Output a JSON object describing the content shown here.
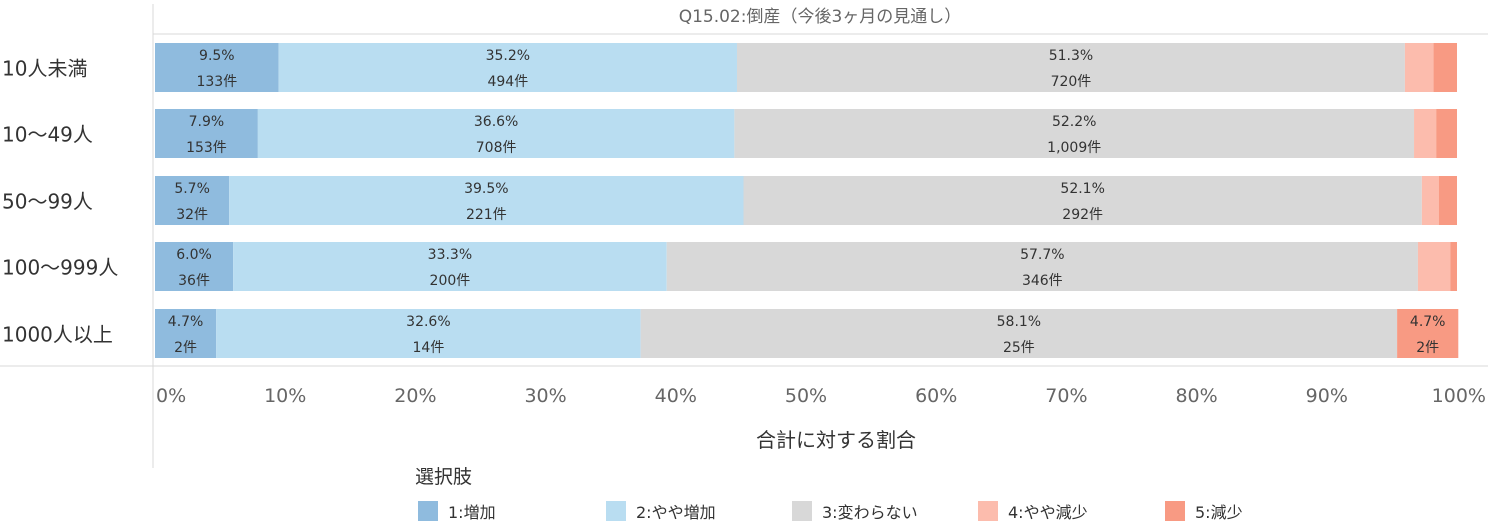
{
  "chart_data": {
    "type": "bar",
    "orientation": "horizontal",
    "stacked": true,
    "title": "Q15.02:倒産（今後3ヶ月の見通し）",
    "xlabel": "合計に対する割合",
    "ylabel": "",
    "xlim": [
      0,
      100
    ],
    "x_ticks": [
      "0%",
      "10%",
      "20%",
      "30%",
      "40%",
      "50%",
      "60%",
      "70%",
      "80%",
      "90%",
      "100%"
    ],
    "categories": [
      "10人未満",
      "10〜49人",
      "50〜99人",
      "100〜999人",
      "1000人以上"
    ],
    "series": [
      {
        "name": "1:増加",
        "color": "#8fbbde",
        "values": [
          9.5,
          7.9,
          5.7,
          6.0,
          4.7
        ],
        "labels": [
          "9.5%",
          "7.9%",
          "5.7%",
          "6.0%",
          "4.7%"
        ],
        "counts": [
          "133件",
          "153件",
          "32件",
          "36件",
          "2件"
        ]
      },
      {
        "name": "2:やや増加",
        "color": "#b9ddf1",
        "values": [
          35.2,
          36.6,
          39.5,
          33.3,
          32.6
        ],
        "labels": [
          "35.2%",
          "36.6%",
          "39.5%",
          "33.3%",
          "32.6%"
        ],
        "counts": [
          "494件",
          "708件",
          "221件",
          "200件",
          "14件"
        ]
      },
      {
        "name": "3:変わらない",
        "color": "#d8d8d8",
        "values": [
          51.3,
          52.2,
          52.1,
          57.7,
          58.1
        ],
        "labels": [
          "51.3%",
          "52.2%",
          "52.1%",
          "57.7%",
          "58.1%"
        ],
        "counts": [
          "720件",
          "1,009件",
          "292件",
          "346件",
          "25件"
        ]
      },
      {
        "name": "4:やや減少",
        "color": "#fcbcad",
        "values": [
          2.2,
          1.7,
          1.3,
          2.5,
          0.0
        ],
        "labels": [
          "",
          "",
          "",
          "",
          ""
        ],
        "counts": [
          "",
          "",
          "",
          "",
          ""
        ]
      },
      {
        "name": "5:減少",
        "color": "#f89a83",
        "values": [
          1.8,
          1.6,
          1.4,
          0.5,
          4.7
        ],
        "labels": [
          "",
          "",
          "",
          "",
          "4.7%"
        ],
        "counts": [
          "",
          "",
          "",
          "",
          "2件"
        ]
      }
    ],
    "legend": {
      "title": "選択肢",
      "position": "bottom"
    },
    "grid": false
  }
}
